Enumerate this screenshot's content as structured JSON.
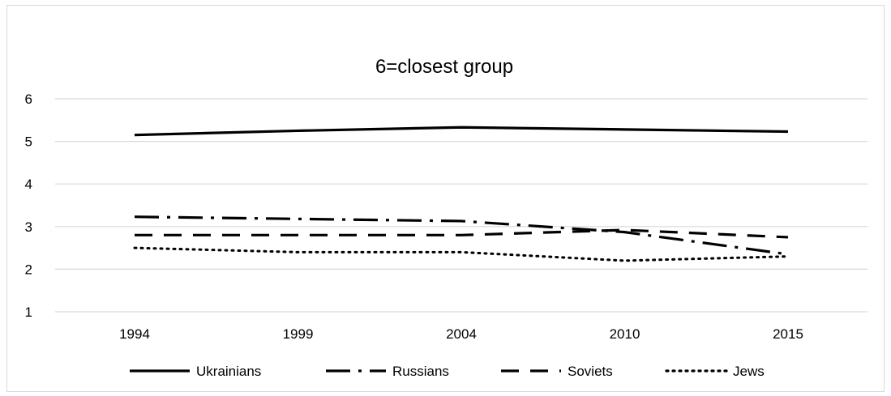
{
  "chart_data": {
    "type": "line",
    "title": "6=closest group",
    "xlabel": "",
    "ylabel": "",
    "categories": [
      "1994",
      "1999",
      "2004",
      "2010",
      "2015"
    ],
    "ylim": [
      1,
      6
    ],
    "yticks": [
      "1",
      "2",
      "3",
      "4",
      "5",
      "6"
    ],
    "grid": true,
    "legend_position": "bottom",
    "series": [
      {
        "name": "Ukrainians",
        "values": [
          5.15,
          5.25,
          5.33,
          5.28,
          5.23
        ],
        "style": "solid"
      },
      {
        "name": "Russians",
        "values": [
          3.23,
          3.18,
          3.13,
          2.87,
          2.35
        ],
        "style": "dashdot"
      },
      {
        "name": "Soviets",
        "values": [
          2.8,
          2.8,
          2.8,
          2.92,
          2.75
        ],
        "style": "dashed"
      },
      {
        "name": "Jews",
        "values": [
          2.5,
          2.4,
          2.4,
          2.2,
          2.3
        ],
        "style": "dotted"
      }
    ],
    "colors": {
      "line": "#000000",
      "grid": "#d9d9d9"
    }
  }
}
